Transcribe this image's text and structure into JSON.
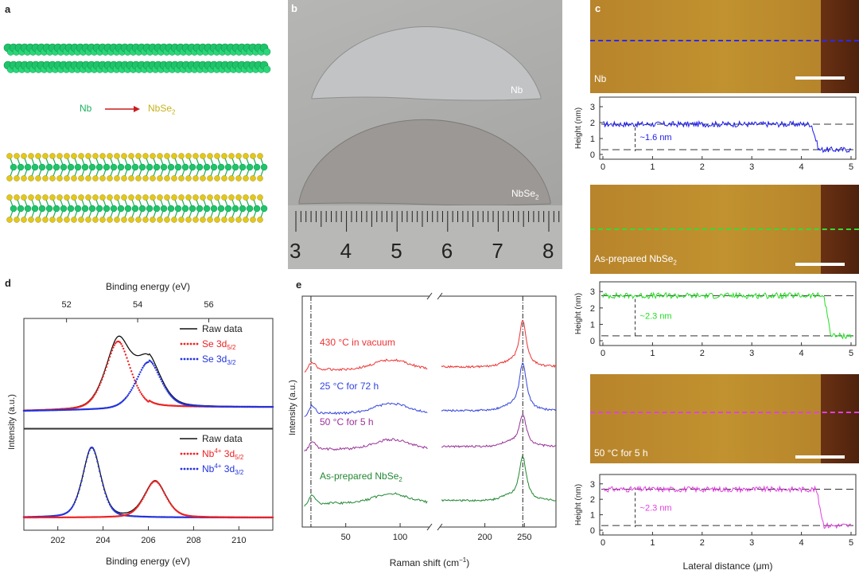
{
  "panels": {
    "a": {
      "label": "a",
      "reaction_from": "Nb",
      "reaction_to": "NbSe",
      "reaction_to_sub": "2",
      "colors": {
        "nb": "#1fc46a",
        "se": "#e3c81a",
        "arrow": "#c81e1e"
      }
    },
    "b": {
      "label": "b",
      "top_label": "Nb",
      "bottom_label": "NbSe",
      "bottom_label_sub": "2",
      "ruler_numbers": [
        "3",
        "4",
        "5",
        "6",
        "7",
        "8"
      ]
    },
    "c": {
      "label": "c",
      "images": [
        {
          "caption": "Nb",
          "caption_sub": "",
          "line_color": "#2a2aff"
        },
        {
          "caption": "As-prepared NbSe",
          "caption_sub": "2",
          "line_color": "#33dd33"
        },
        {
          "caption": "50 °C for 5 h",
          "caption_sub": "",
          "line_color": "#e040e0"
        }
      ],
      "profiles": [
        {
          "color": "#1a1aee",
          "annotation": "~1.6 nm",
          "ylabel": "Height (nm)",
          "yticks": [
            "0",
            "1",
            "2",
            "3"
          ],
          "xticks": [
            "0",
            "1",
            "2",
            "3",
            "4",
            "5"
          ],
          "high": 1.9,
          "low": 0.3,
          "step_x": 4.2
        },
        {
          "color": "#22dd22",
          "annotation": "~2.3 nm",
          "ylabel": "Height (nm)",
          "yticks": [
            "0",
            "1",
            "2",
            "3"
          ],
          "xticks": [
            "0",
            "1",
            "2",
            "3",
            "4",
            "5"
          ],
          "high": 2.75,
          "low": 0.3,
          "step_x": 4.45
        },
        {
          "color": "#e040e0",
          "annotation": "~2.3 nm",
          "ylabel": "Height (nm)",
          "yticks": [
            "0",
            "1",
            "2",
            "3"
          ],
          "xticks": [
            "0",
            "1",
            "2",
            "3",
            "4",
            "5"
          ],
          "high": 2.65,
          "low": 0.3,
          "step_x": 4.3
        }
      ],
      "xlabel": "Lateral distance (μm)"
    },
    "d": {
      "label": "d",
      "top_axis_label": "Binding energy (eV)",
      "top_ticks": [
        "52",
        "54",
        "56"
      ],
      "bottom_axis_label": "Binding energy (eV)",
      "bottom_ticks": [
        "202",
        "204",
        "206",
        "208",
        "210"
      ],
      "ylabel": "Intensity (a.u.)",
      "legend_top": [
        {
          "text": "Raw data",
          "sub": "",
          "sup": "",
          "pre": "",
          "color": "#111111",
          "style": "solid"
        },
        {
          "text": "Se 3d",
          "sub": "5/2",
          "sup": "",
          "pre": "",
          "color": "#ee2222",
          "style": "dotted"
        },
        {
          "text": "Se 3d",
          "sub": "3/2",
          "sup": "",
          "pre": "",
          "color": "#2233dd",
          "style": "dotted"
        }
      ],
      "legend_bottom": [
        {
          "text": "Raw data",
          "color": "#111111",
          "style": "solid"
        },
        {
          "text": "Nb",
          "sup": "4+",
          "rest": " 3d",
          "sub": "5/2",
          "color": "#ee2222",
          "style": "dotted"
        },
        {
          "text": "Nb",
          "sup": "4+",
          "rest": " 3d",
          "sub": "3/2",
          "color": "#2233dd",
          "style": "dotted"
        }
      ]
    },
    "e": {
      "label": "e",
      "ylabel": "Intensity (a.u.)",
      "xlabel": "Raman shift (cm",
      "xlabel_sup": "−1",
      "xlabel_end": ")",
      "xticks_left": [
        "50",
        "100"
      ],
      "xticks_right": [
        "200",
        "250"
      ],
      "spectra": [
        {
          "label": "430 °C in vacuum",
          "label_sub": "",
          "color": "#ee3333"
        },
        {
          "label": "25 °C for 72 h",
          "label_sub": "",
          "color": "#3344dd"
        },
        {
          "label": "50 °C for 5 h",
          "label_sub": "",
          "color": "#993399"
        },
        {
          "label": "As-prepared NbSe",
          "label_sub": "2",
          "color": "#228833"
        }
      ]
    }
  }
}
